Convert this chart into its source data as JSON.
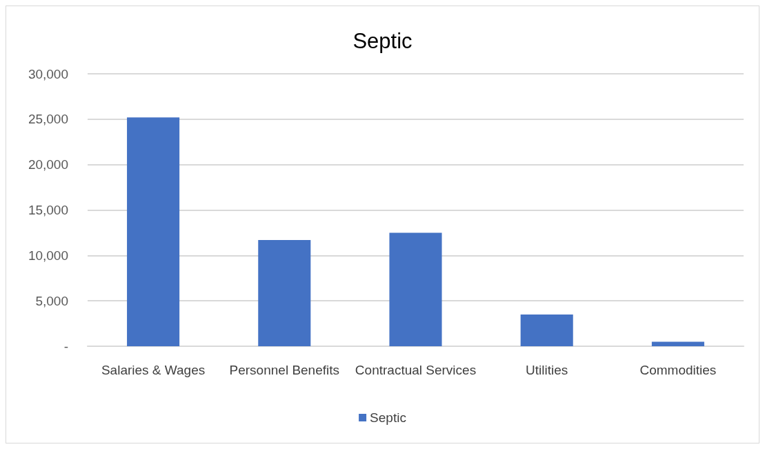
{
  "chart_data": {
    "type": "bar",
    "title": "Septic",
    "categories": [
      "Salaries & Wages",
      "Personnel Benefits",
      "Contractual Services",
      "Utilities",
      "Commodities"
    ],
    "series": [
      {
        "name": "Septic",
        "color": "#4472c4",
        "values": [
          25200,
          11700,
          12500,
          3500,
          500
        ]
      }
    ],
    "ylim": [
      0,
      30000
    ],
    "yticks": [
      {
        "value": 0,
        "label": "-"
      },
      {
        "value": 5000,
        "label": "5,000"
      },
      {
        "value": 10000,
        "label": "10,000"
      },
      {
        "value": 15000,
        "label": "15,000"
      },
      {
        "value": 20000,
        "label": "20,000"
      },
      {
        "value": 25000,
        "label": "25,000"
      },
      {
        "value": 30000,
        "label": "30,000"
      }
    ],
    "grid": "y",
    "legend": "bottom"
  }
}
